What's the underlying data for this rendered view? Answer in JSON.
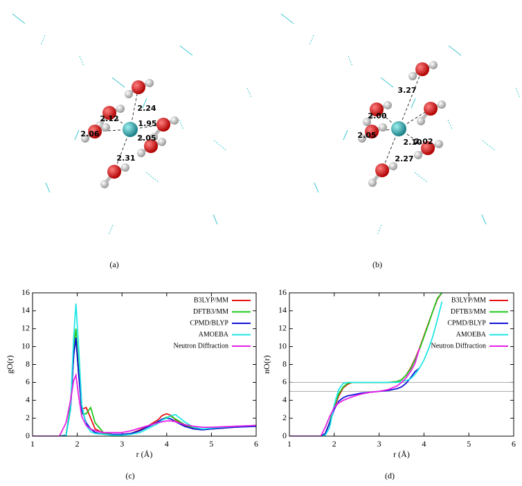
{
  "panels": [
    {
      "label": "(a)",
      "distances": [
        "2.24",
        "2.12",
        "1.95",
        "2.06",
        "2.05",
        "2.31"
      ]
    },
    {
      "label": "(b)",
      "distances": [
        "3.27",
        "2.00",
        "2.02",
        "2.05",
        "2.10",
        "2.27"
      ]
    }
  ],
  "chart_data": [
    {
      "type": "line",
      "label": "(c)",
      "xlabel": "r (Å)",
      "ylabel": "gO(r)",
      "x": [
        1,
        1.6,
        1.75,
        1.85,
        1.92,
        1.97,
        2.03,
        2.1,
        2.2,
        2.3,
        2.4,
        2.6,
        2.8,
        3.0,
        3.2,
        3.4,
        3.6,
        3.8,
        3.9,
        4.0,
        4.1,
        4.2,
        4.4,
        4.6,
        4.8,
        5.0,
        5.5,
        6.0
      ],
      "series": [
        {
          "name": "B3LYP/MM",
          "color": "#e8110f",
          "values": [
            0,
            0,
            0.1,
            3,
            9,
            11,
            7,
            3,
            3.2,
            2,
            0.8,
            0.3,
            0.2,
            0.2,
            0.3,
            0.7,
            1.2,
            1.8,
            2.3,
            2.5,
            2.3,
            1.8,
            1.2,
            0.9,
            0.8,
            0.8,
            1.0,
            1.2
          ]
        },
        {
          "name": "DFTB3/MM",
          "color": "#1ec81e",
          "values": [
            0,
            0,
            0.1,
            3.5,
            10,
            12,
            7.5,
            2.5,
            2.5,
            3.2,
            1.5,
            0.3,
            0.2,
            0.2,
            0.3,
            0.6,
            1.1,
            1.6,
            1.9,
            2.1,
            2.2,
            1.9,
            1.3,
            0.9,
            0.8,
            0.8,
            1.0,
            1.2
          ]
        },
        {
          "name": "CPMD/BLYP",
          "color": "#1010d8",
          "values": [
            0,
            0,
            0.1,
            3,
            9,
            11,
            7,
            3,
            1.5,
            0.8,
            0.4,
            0.2,
            0.2,
            0.2,
            0.3,
            0.6,
            1.1,
            1.6,
            1.9,
            2.0,
            1.9,
            1.6,
            1.1,
            0.8,
            0.7,
            0.8,
            1.0,
            1.1
          ]
        },
        {
          "name": "AMOEBA",
          "color": "#1ee6e6",
          "values": [
            0,
            0,
            0.05,
            3,
            11,
            14.8,
            10,
            3.5,
            1.2,
            0.5,
            0.3,
            0.2,
            0.1,
            0.1,
            0.2,
            0.4,
            0.9,
            1.4,
            1.8,
            2.0,
            2.3,
            2.4,
            1.6,
            1.0,
            0.8,
            0.9,
            1.1,
            1.2
          ]
        },
        {
          "name": "Neutron Diffraction",
          "color": "#e81ee8",
          "values": [
            0,
            0,
            1.5,
            4,
            6.2,
            6.8,
            4.5,
            2.2,
            1.2,
            0.8,
            0.6,
            0.4,
            0.4,
            0.4,
            0.6,
            0.9,
            1.2,
            1.5,
            1.6,
            1.7,
            1.7,
            1.6,
            1.3,
            1.1,
            1.0,
            1.0,
            1.1,
            1.2
          ]
        }
      ],
      "xlim": [
        1,
        6
      ],
      "xticks": [
        1,
        2,
        3,
        4,
        5,
        6
      ],
      "ylim": [
        0,
        16
      ],
      "yticks": [
        0,
        2,
        4,
        6,
        8,
        10,
        12,
        14,
        16
      ],
      "legend": "top-right"
    },
    {
      "type": "line",
      "label": "(d)",
      "xlabel": "r (Å)",
      "ylabel": "nO(r)",
      "x": [
        1,
        1.7,
        1.8,
        1.9,
        2.0,
        2.1,
        2.2,
        2.3,
        2.4,
        2.6,
        2.8,
        3.0,
        3.2,
        3.4,
        3.5,
        3.6,
        3.7,
        3.8,
        3.9,
        4.0,
        4.1,
        4.2,
        4.3,
        4.4
      ],
      "series": [
        {
          "name": "B3LYP/MM",
          "color": "#e8110f",
          "values": [
            0,
            0,
            0.3,
            1.5,
            3.2,
            4.5,
            5.4,
            5.8,
            6,
            6,
            6,
            6,
            6,
            6.1,
            6.3,
            6.8,
            7.6,
            8.6,
            9.8,
            11.2,
            12.6,
            14,
            15.3,
            16
          ]
        },
        {
          "name": "DFTB3/MM",
          "color": "#1ec81e",
          "values": [
            0,
            0,
            0.3,
            1.6,
            3.4,
            4.7,
            5.5,
            5.9,
            6,
            6,
            6,
            6,
            6,
            6.1,
            6.3,
            6.8,
            7.5,
            8.5,
            9.7,
            11.1,
            12.5,
            14,
            15.4,
            16
          ]
        },
        {
          "name": "CPMD/BLYP",
          "color": "#1010d8",
          "values": [
            0,
            0,
            0.3,
            1.5,
            3.0,
            3.9,
            4.3,
            4.5,
            4.6,
            4.8,
            4.9,
            5.0,
            5.1,
            5.3,
            5.5,
            5.9,
            6.5,
            7.2,
            7.6,
            null,
            null,
            null,
            null,
            null
          ]
        },
        {
          "name": "AMOEBA",
          "color": "#1ee6e6",
          "values": [
            0,
            0,
            0.1,
            1.0,
            3.5,
            5.2,
            5.9,
            6,
            6,
            6,
            6,
            6,
            6,
            6,
            6.1,
            6.2,
            6.4,
            6.9,
            7.6,
            8.5,
            9.7,
            11.2,
            13,
            15
          ]
        },
        {
          "name": "Neutron Diffraction",
          "color": "#e81ee8",
          "values": [
            0,
            0,
            1.0,
            2.2,
            3.2,
            3.7,
            4.0,
            4.2,
            4.4,
            4.7,
            4.9,
            5.0,
            5.2,
            5.6,
            6.0,
            6.5,
            7.2,
            8.1,
            9.8,
            null,
            null,
            null,
            null,
            null
          ]
        }
      ],
      "hlines": [
        6,
        5
      ],
      "hline_color": "#aaaaaa",
      "xlim": [
        1,
        6
      ],
      "xticks": [
        1,
        2,
        3,
        4,
        5,
        6
      ],
      "ylim": [
        0,
        16
      ],
      "yticks": [
        0,
        2,
        4,
        6,
        8,
        10,
        12,
        14,
        16
      ],
      "legend": "top-right"
    }
  ]
}
